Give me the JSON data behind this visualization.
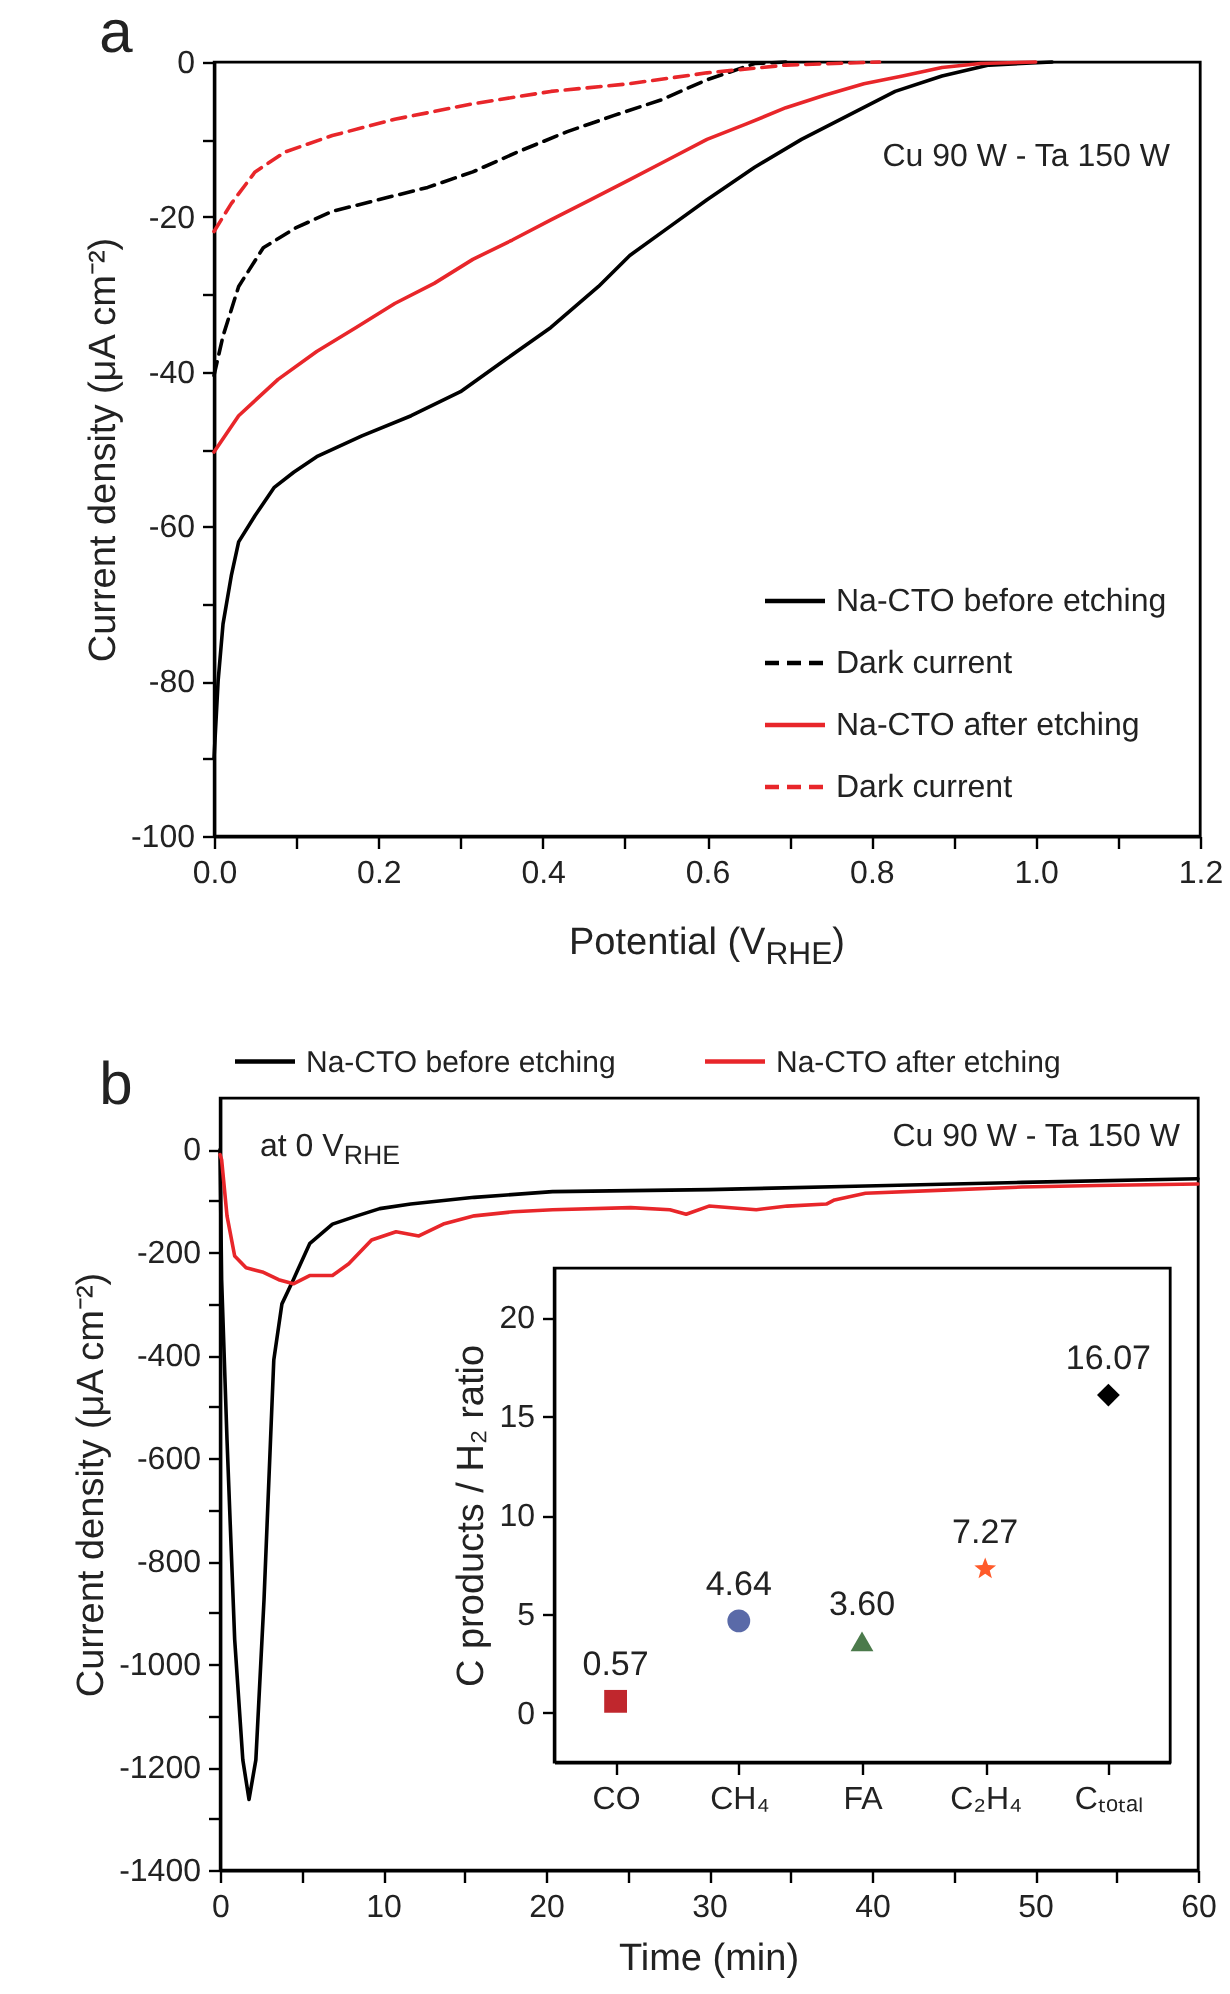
{
  "chart_data": [
    {
      "type": "line",
      "title": "a",
      "xlabel": "Potential (V$_{RHE}$)",
      "ylabel": "Current density (μA cm⁻²)",
      "annotations": [
        "Cu 90 W - Ta 150 W"
      ],
      "legend": "bottom right",
      "xlim": [
        0,
        1.2
      ],
      "ylim": [
        -100,
        0
      ],
      "xticks": [
        {
          "value": 0,
          "label": "0.0"
        },
        {
          "value": 0.1,
          "label": null
        },
        {
          "value": 0.2,
          "label": "0.2"
        },
        {
          "value": 0.3,
          "label": null
        },
        {
          "value": 0.4,
          "label": "0.4"
        },
        {
          "value": 0.5,
          "label": null
        },
        {
          "value": 0.6,
          "label": "0.6"
        },
        {
          "value": 0.7,
          "label": null
        },
        {
          "value": 0.8,
          "label": "0.8"
        },
        {
          "value": 0.9,
          "label": null
        },
        {
          "value": 1,
          "label": "1.0"
        },
        {
          "value": 1.1,
          "label": null
        },
        {
          "value": 1.2,
          "label": "1.2"
        }
      ],
      "yticks": [
        -100,
        {
          "value": -90,
          "label": null
        },
        -80,
        {
          "value": -70,
          "label": null
        },
        -60,
        {
          "value": -50,
          "label": null
        },
        -40,
        {
          "value": -30,
          "label": null
        },
        -20,
        {
          "value": -10,
          "label": null
        },
        0
      ],
      "series": [
        {
          "name": "Na-CTO before etching",
          "color": "#000000",
          "line_style": "solid",
          "x": [
            0,
            0.005,
            0.011,
            0.021,
            0.03,
            0.05,
            0.073,
            0.097,
            0.125,
            0.18,
            0.24,
            0.3,
            0.354,
            0.41,
            0.468,
            0.506,
            0.553,
            0.6,
            0.658,
            0.715,
            0.772,
            0.829,
            0.886,
            0.943,
            1.02
          ],
          "values": [
            -90,
            -80,
            -72.6,
            -66.4,
            -62,
            -58.6,
            -55,
            -53,
            -51,
            -48.3,
            -45.7,
            -42.6,
            -38.5,
            -34.3,
            -29,
            -25,
            -21.4,
            -17.8,
            -13.6,
            -10,
            -6.9,
            -3.8,
            -1.8,
            -0.4,
            0
          ]
        },
        {
          "name": "Dark current",
          "color": "#000000",
          "line_style": "dashed",
          "x": [
            0,
            0.011,
            0.03,
            0.06,
            0.1,
            0.144,
            0.2,
            0.26,
            0.315,
            0.37,
            0.43,
            0.487,
            0.544,
            0.6,
            0.658,
            0.696
          ],
          "values": [
            -40.5,
            -35.4,
            -29,
            -24,
            -21.4,
            -19.3,
            -17.8,
            -16.2,
            -14.2,
            -11.6,
            -9,
            -6.9,
            -4.9,
            -2.3,
            -0.2,
            0
          ]
        },
        {
          "name": "Na-CTO after etching",
          "color": "#e8262a",
          "line_style": "solid",
          "x": [
            0,
            0.03,
            0.078,
            0.125,
            0.173,
            0.22,
            0.268,
            0.315,
            0.363,
            0.41,
            0.458,
            0.506,
            0.553,
            0.6,
            0.648,
            0.696,
            0.743,
            0.791,
            0.838,
            0.886,
            0.933,
            1.0
          ],
          "values": [
            -50.4,
            -45.7,
            -41,
            -37.4,
            -34.3,
            -31.2,
            -28.6,
            -25.5,
            -23,
            -20.4,
            -17.8,
            -15.2,
            -12.6,
            -10,
            -8,
            -5.9,
            -4.3,
            -2.8,
            -1.8,
            -0.7,
            -0.2,
            0
          ]
        },
        {
          "name": "Dark current",
          "color": "#e8262a",
          "line_style": "dashed",
          "x": [
            0,
            0.021,
            0.05,
            0.087,
            0.144,
            0.22,
            0.315,
            0.41,
            0.506,
            0.6,
            0.696,
            0.81
          ],
          "values": [
            -21.9,
            -18.3,
            -14.2,
            -11.6,
            -9.5,
            -7.4,
            -5.4,
            -3.8,
            -2.8,
            -1.4,
            -0.4,
            0
          ]
        }
      ]
    },
    {
      "type": "line",
      "title": "b",
      "xlabel": "Time (min)",
      "ylabel": "Current density (μA cm⁻²)",
      "annotations": [
        "at 0 V$_{RHE}$",
        "Cu 90 W - Ta 150 W"
      ],
      "legend": "top",
      "xlim": [
        0,
        60
      ],
      "ylim": [
        -1400,
        100
      ],
      "xticks": [
        0,
        {
          "value": 5,
          "label": null
        },
        10,
        {
          "value": 15,
          "label": null
        },
        20,
        {
          "value": 25,
          "label": null
        },
        30,
        {
          "value": 35,
          "label": null
        },
        40,
        {
          "value": 45,
          "label": null
        },
        50,
        {
          "value": 55,
          "label": null
        },
        60
      ],
      "yticks": [
        -1400,
        {
          "value": -1300,
          "label": null
        },
        -1200,
        {
          "value": -1100,
          "label": null
        },
        -1000,
        {
          "value": -900,
          "label": null
        },
        -800,
        {
          "value": -700,
          "label": null
        },
        -600,
        {
          "value": -500,
          "label": null
        },
        -400,
        {
          "value": -300,
          "label": null
        },
        -200,
        {
          "value": -100,
          "label": null
        },
        0
      ],
      "series": [
        {
          "name": "Na-CTO before etching",
          "color": "#000000",
          "line_style": "solid",
          "x": [
            0,
            0.1,
            0.43,
            0.9,
            1.4,
            1.78,
            2.2,
            2.7,
            3.1,
            3.3,
            3.8,
            4.5,
            5.5,
            6.9,
            8.4,
            9.8,
            11.7,
            15.6,
            20.4,
            30,
            39.6,
            49.2,
            60
          ],
          "values": [
            0,
            -253,
            -564,
            -952,
            -1186,
            -1263,
            -1186,
            -875,
            -564,
            -409,
            -300,
            -253,
            -183,
            -145,
            -129,
            -115,
            -106,
            -93,
            -82,
            -78,
            -71,
            -64,
            -57
          ]
        },
        {
          "name": "Na-CTO after etching",
          "color": "#e8262a",
          "line_style": "solid",
          "x": [
            0,
            0.1,
            0.43,
            0.9,
            1.6,
            2.6,
            3.6,
            4.5,
            5.5,
            6.9,
            7.9,
            9.3,
            10.8,
            12.2,
            13.7,
            15.6,
            18,
            20.4,
            25.2,
            27.6,
            28.6,
            30,
            32.9,
            34.8,
            37.2,
            37.7,
            39.6,
            44.4,
            49.2,
            53.8,
            60
          ],
          "values": [
            -10,
            -20,
            -129,
            -207,
            -230,
            -238,
            -253,
            -261,
            -245,
            -245,
            -222,
            -176,
            -160,
            -168,
            -145,
            -129,
            -121,
            -117,
            -113,
            -117,
            -126,
            -110,
            -117,
            -110,
            -106,
            -98,
            -85,
            -79,
            -73,
            -70,
            -67
          ]
        }
      ]
    },
    {
      "type": "scatter",
      "ylabel": "C products / H₂ ratio",
      "categories": [
        "CO",
        "CH₄",
        "FA",
        "C₂H₄",
        "Cₜₒₜₐₗ"
      ],
      "ylim": [
        -2.5,
        22.5
      ],
      "yticks": [
        0,
        5,
        10,
        15,
        20
      ],
      "series": [
        {
          "type": "scatter",
          "color": "#c0272d",
          "marker": "square",
          "values": [
            0.57,
            null,
            null,
            null,
            null
          ],
          "value_labels": [
            "0.57",
            null,
            null,
            null,
            null
          ]
        },
        {
          "type": "scatter",
          "color": "#5a6aa8",
          "marker": "circle",
          "values": [
            null,
            4.64,
            null,
            null,
            null
          ],
          "value_labels": [
            null,
            "4.64",
            null,
            null,
            null
          ]
        },
        {
          "type": "scatter",
          "color": "#4b7a4b",
          "marker": "triangle",
          "values": [
            null,
            null,
            3.6,
            null,
            null
          ],
          "value_labels": [
            null,
            null,
            "3.60",
            null,
            null
          ]
        },
        {
          "type": "scatter",
          "color": "#ff5a2a",
          "marker": "star",
          "values": [
            null,
            null,
            null,
            7.27,
            null
          ],
          "value_labels": [
            null,
            null,
            null,
            "7.27",
            null
          ]
        },
        {
          "type": "scatter",
          "color": "#000000",
          "marker": "diamond",
          "values": [
            null,
            null,
            null,
            null,
            16.07
          ],
          "value_labels": [
            null,
            null,
            null,
            null,
            "16.07"
          ]
        }
      ]
    }
  ]
}
